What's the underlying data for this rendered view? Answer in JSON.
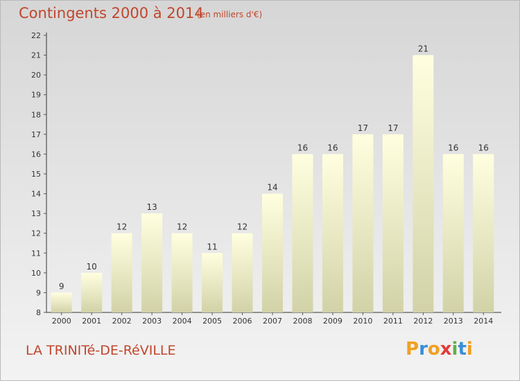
{
  "header": {
    "title": "Contingents 2000 à 2014",
    "unit_note": "(en milliers d'€)"
  },
  "footer": {
    "commune": "LA TRINITé-DE-RéVILLE",
    "logo_letters": [
      "P",
      "r",
      "o",
      "x",
      "i",
      "t",
      "i"
    ]
  },
  "colors": {
    "accent_text": "#c0462c",
    "bar_fill_top": "#ffffe0",
    "bar_fill_bottom": "#d2d2a8",
    "axis": "#333333",
    "grid_tick": "#555555"
  },
  "chart_data": {
    "type": "bar",
    "categories": [
      "2000",
      "2001",
      "2002",
      "2003",
      "2004",
      "2005",
      "2006",
      "2007",
      "2008",
      "2009",
      "2010",
      "2011",
      "2012",
      "2013",
      "2014"
    ],
    "values": [
      9,
      10,
      12,
      13,
      12,
      11,
      12,
      14,
      16,
      16,
      17,
      17,
      21,
      16,
      16
    ],
    "title": "Contingents 2000 à 2014",
    "ylabel": "(en milliers d'€)",
    "ylim": [
      8,
      22
    ],
    "yticks": [
      8,
      9,
      10,
      11,
      12,
      13,
      14,
      15,
      16,
      17,
      18,
      19,
      20,
      21,
      22
    ],
    "data_labels": true,
    "grid": false,
    "legend": "none"
  }
}
